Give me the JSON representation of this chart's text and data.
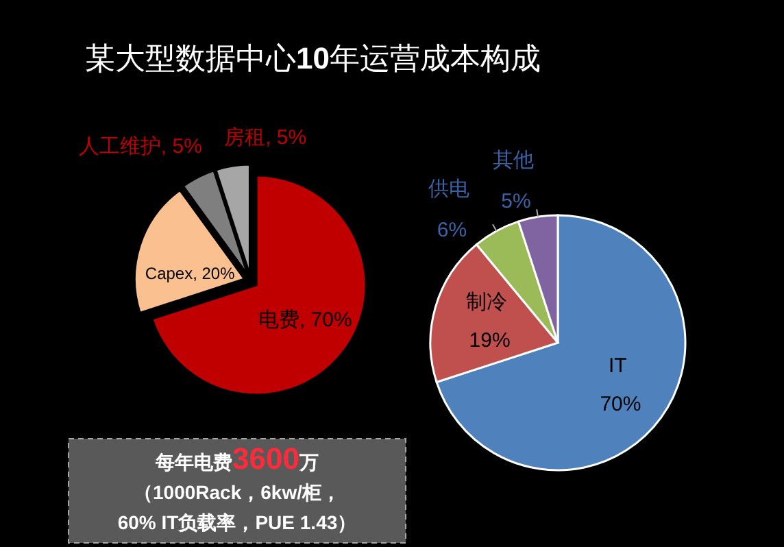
{
  "chart_data": [
    {
      "type": "pie",
      "title": "某大型数据中心10年运营成本构成",
      "categories": [
        "电费",
        "Capex",
        "人工维护",
        "房租"
      ],
      "values": [
        70,
        20,
        5,
        5
      ],
      "colors": [
        "#c00000",
        "#fac090",
        "#7f7f7f",
        "#a6a6a6"
      ],
      "value_labels": [
        "70%",
        "20%",
        "5%",
        "5%"
      ],
      "annotations": [
        "每年电费3600万",
        "（1000Rack，6kw/柜，",
        "60% IT负载率，PUE 1.43）"
      ]
    },
    {
      "type": "pie",
      "categories": [
        "IT",
        "制冷",
        "供电",
        "其他"
      ],
      "values": [
        70,
        19,
        6,
        5
      ],
      "colors": [
        "#4f81bd",
        "#c0504d",
        "#9bbb59",
        "#8064a2"
      ],
      "value_labels": [
        "70%",
        "19%",
        "6%",
        "5%"
      ]
    }
  ]
}
